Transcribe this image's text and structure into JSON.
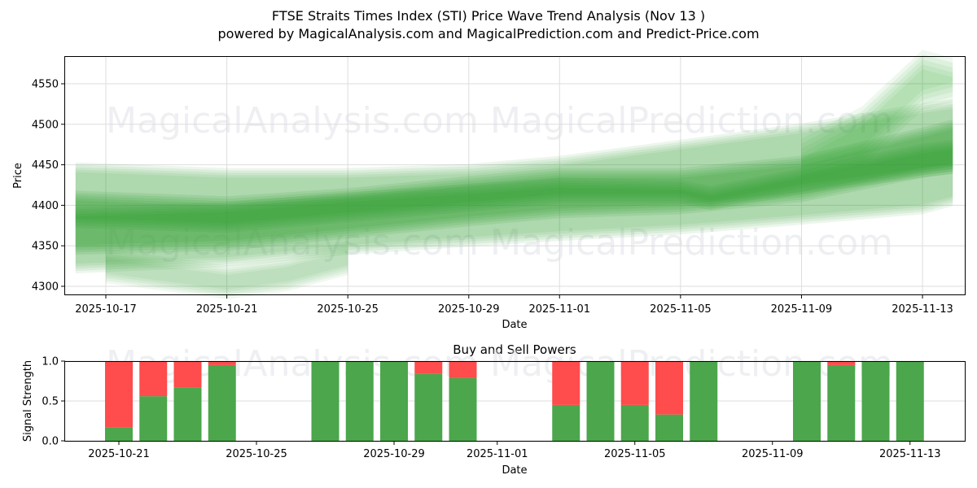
{
  "header": {
    "title": "FTSE Straits Times Index (STI) Price Wave Trend Analysis (Nov 13 )",
    "subtitle": "powered by MagicalAnalysis.com and MagicalPrediction.com and Predict-Price.com"
  },
  "watermarks": [
    "MagicalAnalysis.com",
    "MagicalPrediction.com"
  ],
  "colors": {
    "wave": "#2ca02c",
    "buy": "#4ca64c",
    "sell": "#ff4c4c",
    "grid": "#dddddd"
  },
  "chart_data": [
    {
      "type": "area",
      "title": "",
      "xlabel": "Date",
      "ylabel": "Price",
      "ylim": [
        4288,
        4585
      ],
      "yticks": [
        4300,
        4350,
        4400,
        4450,
        4500,
        4550
      ],
      "xticks": [
        "2025-10-17",
        "2025-10-21",
        "2025-10-25",
        "2025-10-29",
        "2025-11-01",
        "2025-11-05",
        "2025-11-09",
        "2025-11-13"
      ],
      "grid": true,
      "series": [
        {
          "name": "wave-outer",
          "x": [
            "2025-10-16",
            "2025-10-21",
            "2025-10-25",
            "2025-10-29",
            "2025-11-01",
            "2025-11-05",
            "2025-11-09",
            "2025-11-13",
            "2025-11-14"
          ],
          "upper": [
            4447,
            4440,
            4440,
            4445,
            4455,
            4475,
            4495,
            4520,
            4525
          ],
          "lower": [
            4322,
            4330,
            4345,
            4355,
            4362,
            4370,
            4382,
            4395,
            4405
          ]
        },
        {
          "name": "wave-mid",
          "x": [
            "2025-10-16",
            "2025-10-21",
            "2025-10-25",
            "2025-10-29",
            "2025-11-01",
            "2025-11-05",
            "2025-11-09",
            "2025-11-13",
            "2025-11-14"
          ],
          "upper": [
            4412,
            4405,
            4415,
            4430,
            4440,
            4440,
            4455,
            4490,
            4500
          ],
          "lower": [
            4345,
            4350,
            4365,
            4380,
            4390,
            4395,
            4410,
            4440,
            4445
          ]
        },
        {
          "name": "wave-core",
          "x": [
            "2025-10-16",
            "2025-10-21",
            "2025-10-25",
            "2025-10-29",
            "2025-11-01",
            "2025-11-05",
            "2025-11-06",
            "2025-11-09",
            "2025-11-13",
            "2025-11-14"
          ],
          "upper": [
            4392,
            4398,
            4410,
            4420,
            4428,
            4425,
            4418,
            4440,
            4470,
            4475
          ],
          "lower": [
            4378,
            4372,
            4385,
            4398,
            4408,
            4408,
            4400,
            4420,
            4440,
            4445
          ]
        },
        {
          "name": "wave-high-proj",
          "x": [
            "2025-11-09",
            "2025-11-11",
            "2025-11-13",
            "2025-11-14"
          ],
          "upper": [
            4470,
            4510,
            4580,
            4570
          ],
          "lower": [
            4440,
            4460,
            4530,
            4540
          ]
        },
        {
          "name": "wave-low-early",
          "x": [
            "2025-10-17",
            "2025-10-21",
            "2025-10-23",
            "2025-10-25"
          ],
          "upper": [
            4340,
            4320,
            4330,
            4350
          ],
          "lower": [
            4310,
            4290,
            4300,
            4320
          ]
        }
      ]
    },
    {
      "type": "bar",
      "title": "Buy and Sell Powers",
      "xlabel": "Date",
      "ylabel": "Signal Strength",
      "ylim": [
        0,
        1.0
      ],
      "yticks": [
        "0.0",
        "0.5",
        "1.0"
      ],
      "xticks": [
        "2025-10-21",
        "2025-10-25",
        "2025-10-29",
        "2025-11-01",
        "2025-11-05",
        "2025-11-09",
        "2025-11-13"
      ],
      "categories": [
        "2025-10-21",
        "2025-10-22",
        "2025-10-23",
        "2025-10-24",
        "2025-10-27",
        "2025-10-28",
        "2025-10-29",
        "2025-10-30",
        "2025-10-31",
        "2025-11-03",
        "2025-11-04",
        "2025-11-05",
        "2025-11-06",
        "2025-11-07",
        "2025-11-10",
        "2025-11-11",
        "2025-11-12",
        "2025-11-13"
      ],
      "series": [
        {
          "name": "Buy",
          "values": [
            0.17,
            0.56,
            0.67,
            0.95,
            1.0,
            1.0,
            1.0,
            0.84,
            0.79,
            0.45,
            1.0,
            0.45,
            0.33,
            1.0,
            1.0,
            0.95,
            1.0,
            1.0
          ]
        },
        {
          "name": "Sell",
          "values": [
            0.83,
            0.44,
            0.33,
            0.05,
            0.0,
            0.0,
            0.0,
            0.16,
            0.21,
            0.55,
            0.0,
            0.55,
            0.67,
            0.0,
            0.0,
            0.05,
            0.0,
            0.0
          ]
        }
      ]
    }
  ]
}
